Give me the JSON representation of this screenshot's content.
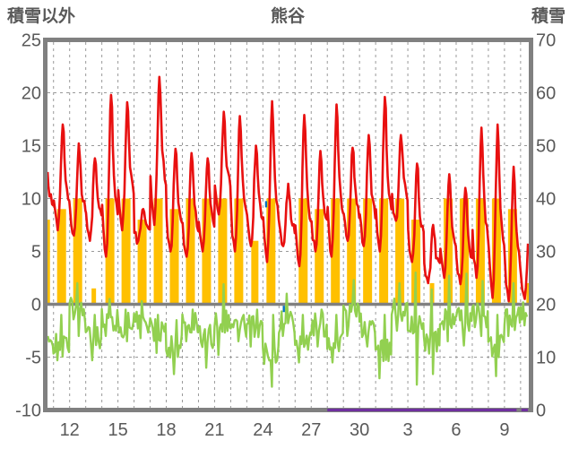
{
  "header": {
    "left_axis_title": "積雪以外",
    "chart_title": "熊谷",
    "right_axis_title": "積雪"
  },
  "colors": {
    "temperature": "#e81010",
    "sunshine": "#ffc000",
    "green_series": "#92d050",
    "snow_depth": "#7030a0",
    "misc_mark": "#0070c0",
    "grid": "#999999",
    "frame": "#808080",
    "text": "#595959",
    "background": "#ffffff"
  },
  "chart_data": {
    "type": "line",
    "title": "熊谷",
    "left_axis": {
      "title": "積雪以外",
      "min": -10,
      "max": 25,
      "ticks": [
        25,
        20,
        15,
        10,
        5,
        0,
        -5,
        -10
      ]
    },
    "right_axis": {
      "title": "積雪",
      "min": 0,
      "max": 70,
      "ticks": [
        70,
        60,
        50,
        40,
        30,
        20,
        10,
        0
      ]
    },
    "x_axis": {
      "tick_labels": [
        "12",
        "15",
        "18",
        "21",
        "24",
        "27",
        "30",
        "3",
        "6",
        "9"
      ],
      "tick_days": [
        12,
        15,
        18,
        21,
        24,
        27,
        30,
        33,
        36,
        39
      ],
      "domain": [
        10.63,
        40.46
      ],
      "gridlines": "one dashed line per day, days 11 through 40",
      "note": "day index 11-30 = Nov 11-30, 31-40 = Dec 1-10"
    },
    "grid": {
      "horizontal_dashed_at": [
        20,
        15,
        10,
        5,
        -5
      ],
      "zero_line_solid_at": 0
    },
    "legend": "none",
    "series": [
      {
        "name": "temperature",
        "type": "line",
        "axis": "left",
        "color": "#e81010",
        "daily": [
          {
            "day": 10,
            "max": 13.0,
            "min": 8.0
          },
          {
            "day": 11,
            "max": 17.0,
            "min": 7.0
          },
          {
            "day": 12,
            "max": 15.2,
            "min": 6.5
          },
          {
            "day": 13,
            "max": 13.8,
            "min": 6.0
          },
          {
            "day": 14,
            "max": 19.8,
            "min": 4.5
          },
          {
            "day": 15,
            "max": 19.1,
            "min": 7.0
          },
          {
            "day": 16,
            "max": 9.0,
            "min": 6.0
          },
          {
            "day": 17,
            "max": 21.5,
            "min": 7.5
          },
          {
            "day": 18,
            "max": 14.7,
            "min": 5.0
          },
          {
            "day": 19,
            "max": 14.3,
            "min": 4.5
          },
          {
            "day": 20,
            "max": 13.8,
            "min": 5.0
          },
          {
            "day": 21,
            "max": 18.2,
            "min": 8.5
          },
          {
            "day": 22,
            "max": 17.8,
            "min": 5.0
          },
          {
            "day": 23,
            "max": 15.0,
            "min": 5.5
          },
          {
            "day": 24,
            "max": 19.2,
            "min": 4.0
          },
          {
            "day": 25,
            "max": 11.4,
            "min": 5.5
          },
          {
            "day": 26,
            "max": 17.9,
            "min": 3.6
          },
          {
            "day": 27,
            "max": 14.5,
            "min": 5.0
          },
          {
            "day": 28,
            "max": 18.9,
            "min": 4.5
          },
          {
            "day": 29,
            "max": 14.8,
            "min": 6.0
          },
          {
            "day": 30,
            "max": 16.0,
            "min": 5.5
          },
          {
            "day": 31,
            "max": 19.6,
            "min": 5.0
          },
          {
            "day": 32,
            "max": 16.0,
            "min": 7.9
          },
          {
            "day": 33,
            "max": 13.3,
            "min": 4.0
          },
          {
            "day": 34,
            "max": 7.5,
            "min": 2.0
          },
          {
            "day": 35,
            "max": 12.3,
            "min": 2.5
          },
          {
            "day": 36,
            "max": 11.0,
            "min": 1.9
          },
          {
            "day": 37,
            "max": 16.7,
            "min": 2.5
          },
          {
            "day": 38,
            "max": 17.0,
            "min": 0.6
          },
          {
            "day": 39,
            "max": 13.0,
            "min": 0.3
          },
          {
            "day": 40,
            "max": 8.5,
            "min": 0.5
          }
        ]
      },
      {
        "name": "sunshine-bars",
        "type": "bar",
        "axis": "left",
        "color": "#ffc000",
        "daily": [
          {
            "day": 10,
            "value": 8
          },
          {
            "day": 11,
            "value": 9
          },
          {
            "day": 12,
            "value": 10
          },
          {
            "day": 13,
            "value": 1.5
          },
          {
            "day": 14,
            "value": 10
          },
          {
            "day": 15,
            "value": 10
          },
          {
            "day": 16,
            "value": 8
          },
          {
            "day": 17,
            "value": 10
          },
          {
            "day": 18,
            "value": 9
          },
          {
            "day": 19,
            "value": 10
          },
          {
            "day": 20,
            "value": 10
          },
          {
            "day": 21,
            "value": 10
          },
          {
            "day": 22,
            "value": 10
          },
          {
            "day": 23,
            "value": 6
          },
          {
            "day": 24,
            "value": 10
          },
          {
            "day": 25,
            "value": 0
          },
          {
            "day": 26,
            "value": 10
          },
          {
            "day": 27,
            "value": 9
          },
          {
            "day": 28,
            "value": 10
          },
          {
            "day": 29,
            "value": 10
          },
          {
            "day": 30,
            "value": 10
          },
          {
            "day": 31,
            "value": 10
          },
          {
            "day": 32,
            "value": 10
          },
          {
            "day": 33,
            "value": 8
          },
          {
            "day": 34,
            "value": 2
          },
          {
            "day": 35,
            "value": 10
          },
          {
            "day": 36,
            "value": 10
          },
          {
            "day": 37,
            "value": 10
          },
          {
            "day": 38,
            "value": 10
          },
          {
            "day": 39,
            "value": 9
          },
          {
            "day": 40,
            "value": 2
          }
        ]
      },
      {
        "name": "green-series",
        "type": "line",
        "axis": "left",
        "color": "#92d050",
        "daily": [
          {
            "day": 10,
            "mean": -4.0,
            "min": -5.0,
            "max": -3.0
          },
          {
            "day": 11,
            "mean": -4.0,
            "min": -5.3,
            "max": -1.0
          },
          {
            "day": 12,
            "mean": -0.5,
            "min": -3.0,
            "max": 2.0
          },
          {
            "day": 13,
            "mean": -3.0,
            "min": -5.3,
            "max": -1.0
          },
          {
            "day": 14,
            "mean": -1.5,
            "min": -3.0,
            "max": 0.5
          },
          {
            "day": 15,
            "mean": -2.0,
            "min": -3.5,
            "max": -0.5
          },
          {
            "day": 16,
            "mean": -1.5,
            "min": -3.2,
            "max": 0.3
          },
          {
            "day": 17,
            "mean": -2.5,
            "min": -4.6,
            "max": -1.0
          },
          {
            "day": 18,
            "mean": -4.0,
            "min": -6.6,
            "max": -1.5
          },
          {
            "day": 19,
            "mean": -2.0,
            "min": -3.5,
            "max": -0.5
          },
          {
            "day": 20,
            "mean": -3.0,
            "min": -6.0,
            "max": -1.0
          },
          {
            "day": 21,
            "mean": -1.5,
            "min": -4.8,
            "max": 1.9
          },
          {
            "day": 22,
            "mean": -2.0,
            "min": -3.5,
            "max": 0.5
          },
          {
            "day": 23,
            "mean": -2.0,
            "min": -4.0,
            "max": -0.5
          },
          {
            "day": 24,
            "mean": -4.5,
            "min": -7.8,
            "max": -1.0
          },
          {
            "day": 25,
            "mean": -1.5,
            "min": -3.0,
            "max": 1.0
          },
          {
            "day": 26,
            "mean": -3.5,
            "min": -5.5,
            "max": -1.0
          },
          {
            "day": 27,
            "mean": -2.0,
            "min": -4.0,
            "max": -0.5
          },
          {
            "day": 28,
            "mean": -3.5,
            "min": -5.5,
            "max": -1.0
          },
          {
            "day": 29,
            "mean": -1.0,
            "min": -3.0,
            "max": 2.3
          },
          {
            "day": 30,
            "mean": -2.0,
            "min": -4.0,
            "max": 0.5
          },
          {
            "day": 31,
            "mean": -4.5,
            "min": -7.0,
            "max": -1.0
          },
          {
            "day": 32,
            "mean": -0.5,
            "min": -2.5,
            "max": 2.0
          },
          {
            "day": 33,
            "mean": -2.0,
            "min": -7.6,
            "max": 3.0
          },
          {
            "day": 34,
            "mean": -3.5,
            "min": -6.6,
            "max": 1.4
          },
          {
            "day": 35,
            "mean": -1.5,
            "min": -3.5,
            "max": 2.7
          },
          {
            "day": 36,
            "mean": -1.5,
            "min": -3.9,
            "max": 2.9
          },
          {
            "day": 37,
            "mean": -1.0,
            "min": -3.0,
            "max": 2.2
          },
          {
            "day": 38,
            "mean": -4.0,
            "min": -6.8,
            "max": -1.0
          },
          {
            "day": 39,
            "mean": -1.5,
            "min": -3.0,
            "max": 2.0
          },
          {
            "day": 40,
            "mean": -1.0,
            "min": -2.0,
            "max": 0.4
          }
        ]
      },
      {
        "name": "snow-depth",
        "type": "line",
        "axis": "right",
        "color": "#7030a0",
        "value_cm": 0,
        "segments": [
          [
            28.0,
            39.75
          ],
          [
            40.05,
            40.45
          ]
        ]
      }
    ],
    "misc_marks": [
      {
        "day": 24.2,
        "value": 9.5,
        "color": "#0070c0"
      },
      {
        "day": 25.3,
        "value": -0.4,
        "color": "#0070c0"
      }
    ]
  }
}
